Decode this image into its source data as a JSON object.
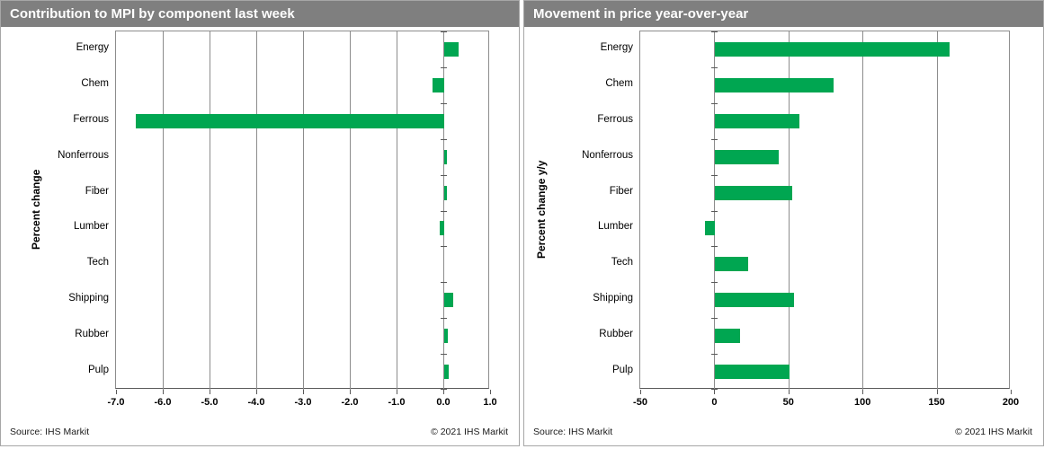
{
  "colors": {
    "title_bar": "#7F7F7F",
    "title_text": "#FFFFFF",
    "bar_green": "#00A651",
    "gridline": "#8C8C8C",
    "axis": "#595959",
    "panel_border": "#A6A6A6"
  },
  "chart_data": [
    {
      "type": "bar",
      "orientation": "horizontal",
      "title": "Contribution to MPI by component last week",
      "ylabel": "Percent change",
      "source": "Source:  IHS Markit",
      "copyright": "© 2021  IHS Markit",
      "categories": [
        "Energy",
        "Chem",
        "Ferrous",
        "Nonferrous",
        "Fiber",
        "Lumber",
        "Tech",
        "Shipping",
        "Rubber",
        "Pulp"
      ],
      "values": [
        0.3,
        -0.25,
        -6.6,
        0.05,
        0.06,
        -0.1,
        0.0,
        0.2,
        0.07,
        0.09
      ],
      "xlim": [
        -7,
        1
      ],
      "xticks": [
        -7,
        -6,
        -5,
        -4,
        -3,
        -2,
        -1,
        0,
        1
      ],
      "xtick_labels": [
        "-7.0",
        "-6.0",
        "-5.0",
        "-4.0",
        "-3.0",
        "-2.0",
        "-1.0",
        "0.0",
        "1.0"
      ],
      "bar_color": "#00A651",
      "grid": true,
      "legend": "none"
    },
    {
      "type": "bar",
      "orientation": "horizontal",
      "title": "Movement in price year-over-year",
      "ylabel": "Percent change y/y",
      "source": "Source:  IHS Markit",
      "copyright": "© 2021  IHS Markit",
      "categories": [
        "Energy",
        "Chem",
        "Ferrous",
        "Nonferrous",
        "Fiber",
        "Lumber",
        "Tech",
        "Shipping",
        "Rubber",
        "Pulp"
      ],
      "values": [
        158,
        80,
        57,
        43,
        52,
        -7,
        22,
        53,
        17,
        50
      ],
      "xlim": [
        -50,
        200
      ],
      "xticks": [
        -50,
        0,
        50,
        100,
        150,
        200
      ],
      "xtick_labels": [
        "-50",
        "0",
        "50",
        "100",
        "150",
        "200"
      ],
      "bar_color": "#00A651",
      "grid": true,
      "legend": "none"
    }
  ]
}
